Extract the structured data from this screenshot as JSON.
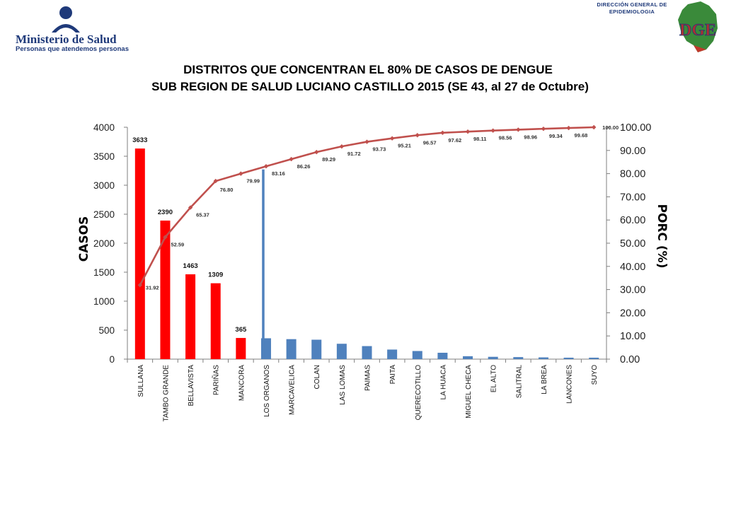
{
  "header": {
    "org_name": "Ministerio de Salud",
    "org_tagline": "Personas que atendemos personas",
    "dge_line1": "DIRECCIÓN GENERAL DE",
    "dge_line2": "EPIDEMIOLOGIA",
    "dge_logo_letters": "DGE"
  },
  "chart_data": {
    "type": "bar",
    "title": "DISTRITOS QUE CONCENTRAN EL 80% DE CASOS DE DENGUE",
    "subtitle": "SUB REGION DE SALUD LUCIANO CASTILLO 2015 (SE 43, al 27 de Octubre)",
    "ylabel": "CASOS",
    "y2label": "PORC (%)",
    "ylim": [
      0,
      4000
    ],
    "y2lim": [
      0,
      100
    ],
    "yticks": [
      "0",
      "500",
      "1000",
      "1500",
      "2000",
      "2500",
      "3000",
      "3500",
      "4000"
    ],
    "y2ticks": [
      "0.00",
      "10.00",
      "20.00",
      "30.00",
      "40.00",
      "50.00",
      "60.00",
      "70.00",
      "80.00",
      "90.00",
      "100.00"
    ],
    "categories": [
      "SULLANA",
      "TAMBO GRANDE",
      "BELLAVISTA",
      "PARIÑAS",
      "MANCORA",
      "LOS ORGANOS",
      "MARCAVELICA",
      "COLAN",
      "LAS LOMAS",
      "PAIMAS",
      "PAITA",
      "QUERECOTILLO",
      "LA HUACA",
      "MIGUEL CHECA",
      "EL ALTO",
      "SALITRAL",
      "LA BREA",
      "LANCONES",
      "SUYO"
    ],
    "series": [
      {
        "kind": "bar",
        "values": [
          3633,
          2390,
          1463,
          1309,
          365,
          360,
          345,
          335,
          265,
          225,
          165,
          140,
          110,
          50,
          40,
          35,
          30,
          25,
          25
        ],
        "value_labels": [
          "3633",
          "2390",
          "1463",
          "1309",
          "365",
          "",
          "",
          "",
          "",
          "",
          "",
          "",
          "",
          "",
          "",
          "",
          "",
          "",
          ""
        ],
        "highlight_color": "#ff0000",
        "highlight_count": 5,
        "color": "#4f81bd"
      },
      {
        "kind": "line",
        "axis": "right",
        "values": [
          31.92,
          52.59,
          65.37,
          76.8,
          79.99,
          83.16,
          86.26,
          89.29,
          91.72,
          93.73,
          95.21,
          96.57,
          97.62,
          98.11,
          98.56,
          98.96,
          99.34,
          99.68,
          100.0
        ],
        "value_labels": [
          "31.92",
          "52.59",
          "65.37",
          "76.80",
          "79.99",
          "83.16",
          "86.26",
          "89.29",
          "91.72",
          "93.73",
          "95.21",
          "96.57",
          "97.62",
          "98.11",
          "98.56",
          "98.96",
          "99.34",
          "99.68",
          "100.00"
        ],
        "color": "#c0504d"
      }
    ],
    "threshold_line": {
      "category": "LOS ORGANOS",
      "value": 79.99,
      "color": "#4f81bd"
    },
    "grid": false
  }
}
